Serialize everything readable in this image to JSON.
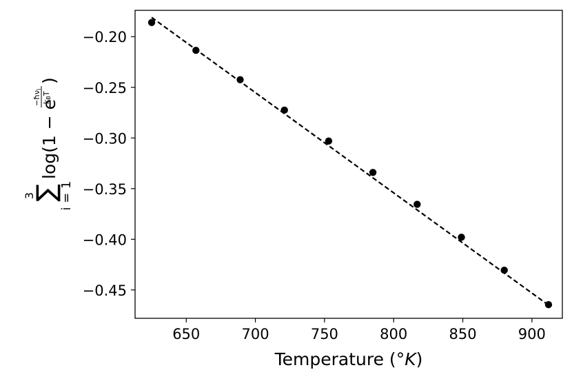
{
  "chart_data": {
    "type": "scatter",
    "xlabel": "Temperature (°K)",
    "ylabel": "∑ i=1..3 log(1 − e^(−ħν_i / k_B T))",
    "xlim": [
      613,
      922
    ],
    "ylim": [
      -0.478,
      -0.174
    ],
    "xticks": [
      650,
      700,
      750,
      800,
      850,
      900
    ],
    "xtick_labels": [
      "650",
      "700",
      "750",
      "800",
      "850",
      "900"
    ],
    "yticks": [
      -0.2,
      -0.25,
      -0.3,
      -0.35,
      -0.4,
      -0.45
    ],
    "ytick_labels": [
      "−0.20",
      "−0.25",
      "−0.30",
      "−0.35",
      "−0.40",
      "−0.45"
    ],
    "grid": false,
    "legend": "none",
    "series": [
      {
        "style": "markers",
        "color": "#000000",
        "x": [
          625,
          657,
          689,
          721,
          753,
          785,
          817,
          849,
          880,
          912
        ],
        "y": [
          -0.186,
          -0.2135,
          -0.2425,
          -0.2725,
          -0.303,
          -0.334,
          -0.3655,
          -0.398,
          -0.4305,
          -0.4645
        ]
      },
      {
        "style": "dashed-line",
        "color": "#000000",
        "x": [
          625,
          913
        ],
        "y": [
          -0.181,
          -0.466
        ]
      }
    ]
  }
}
